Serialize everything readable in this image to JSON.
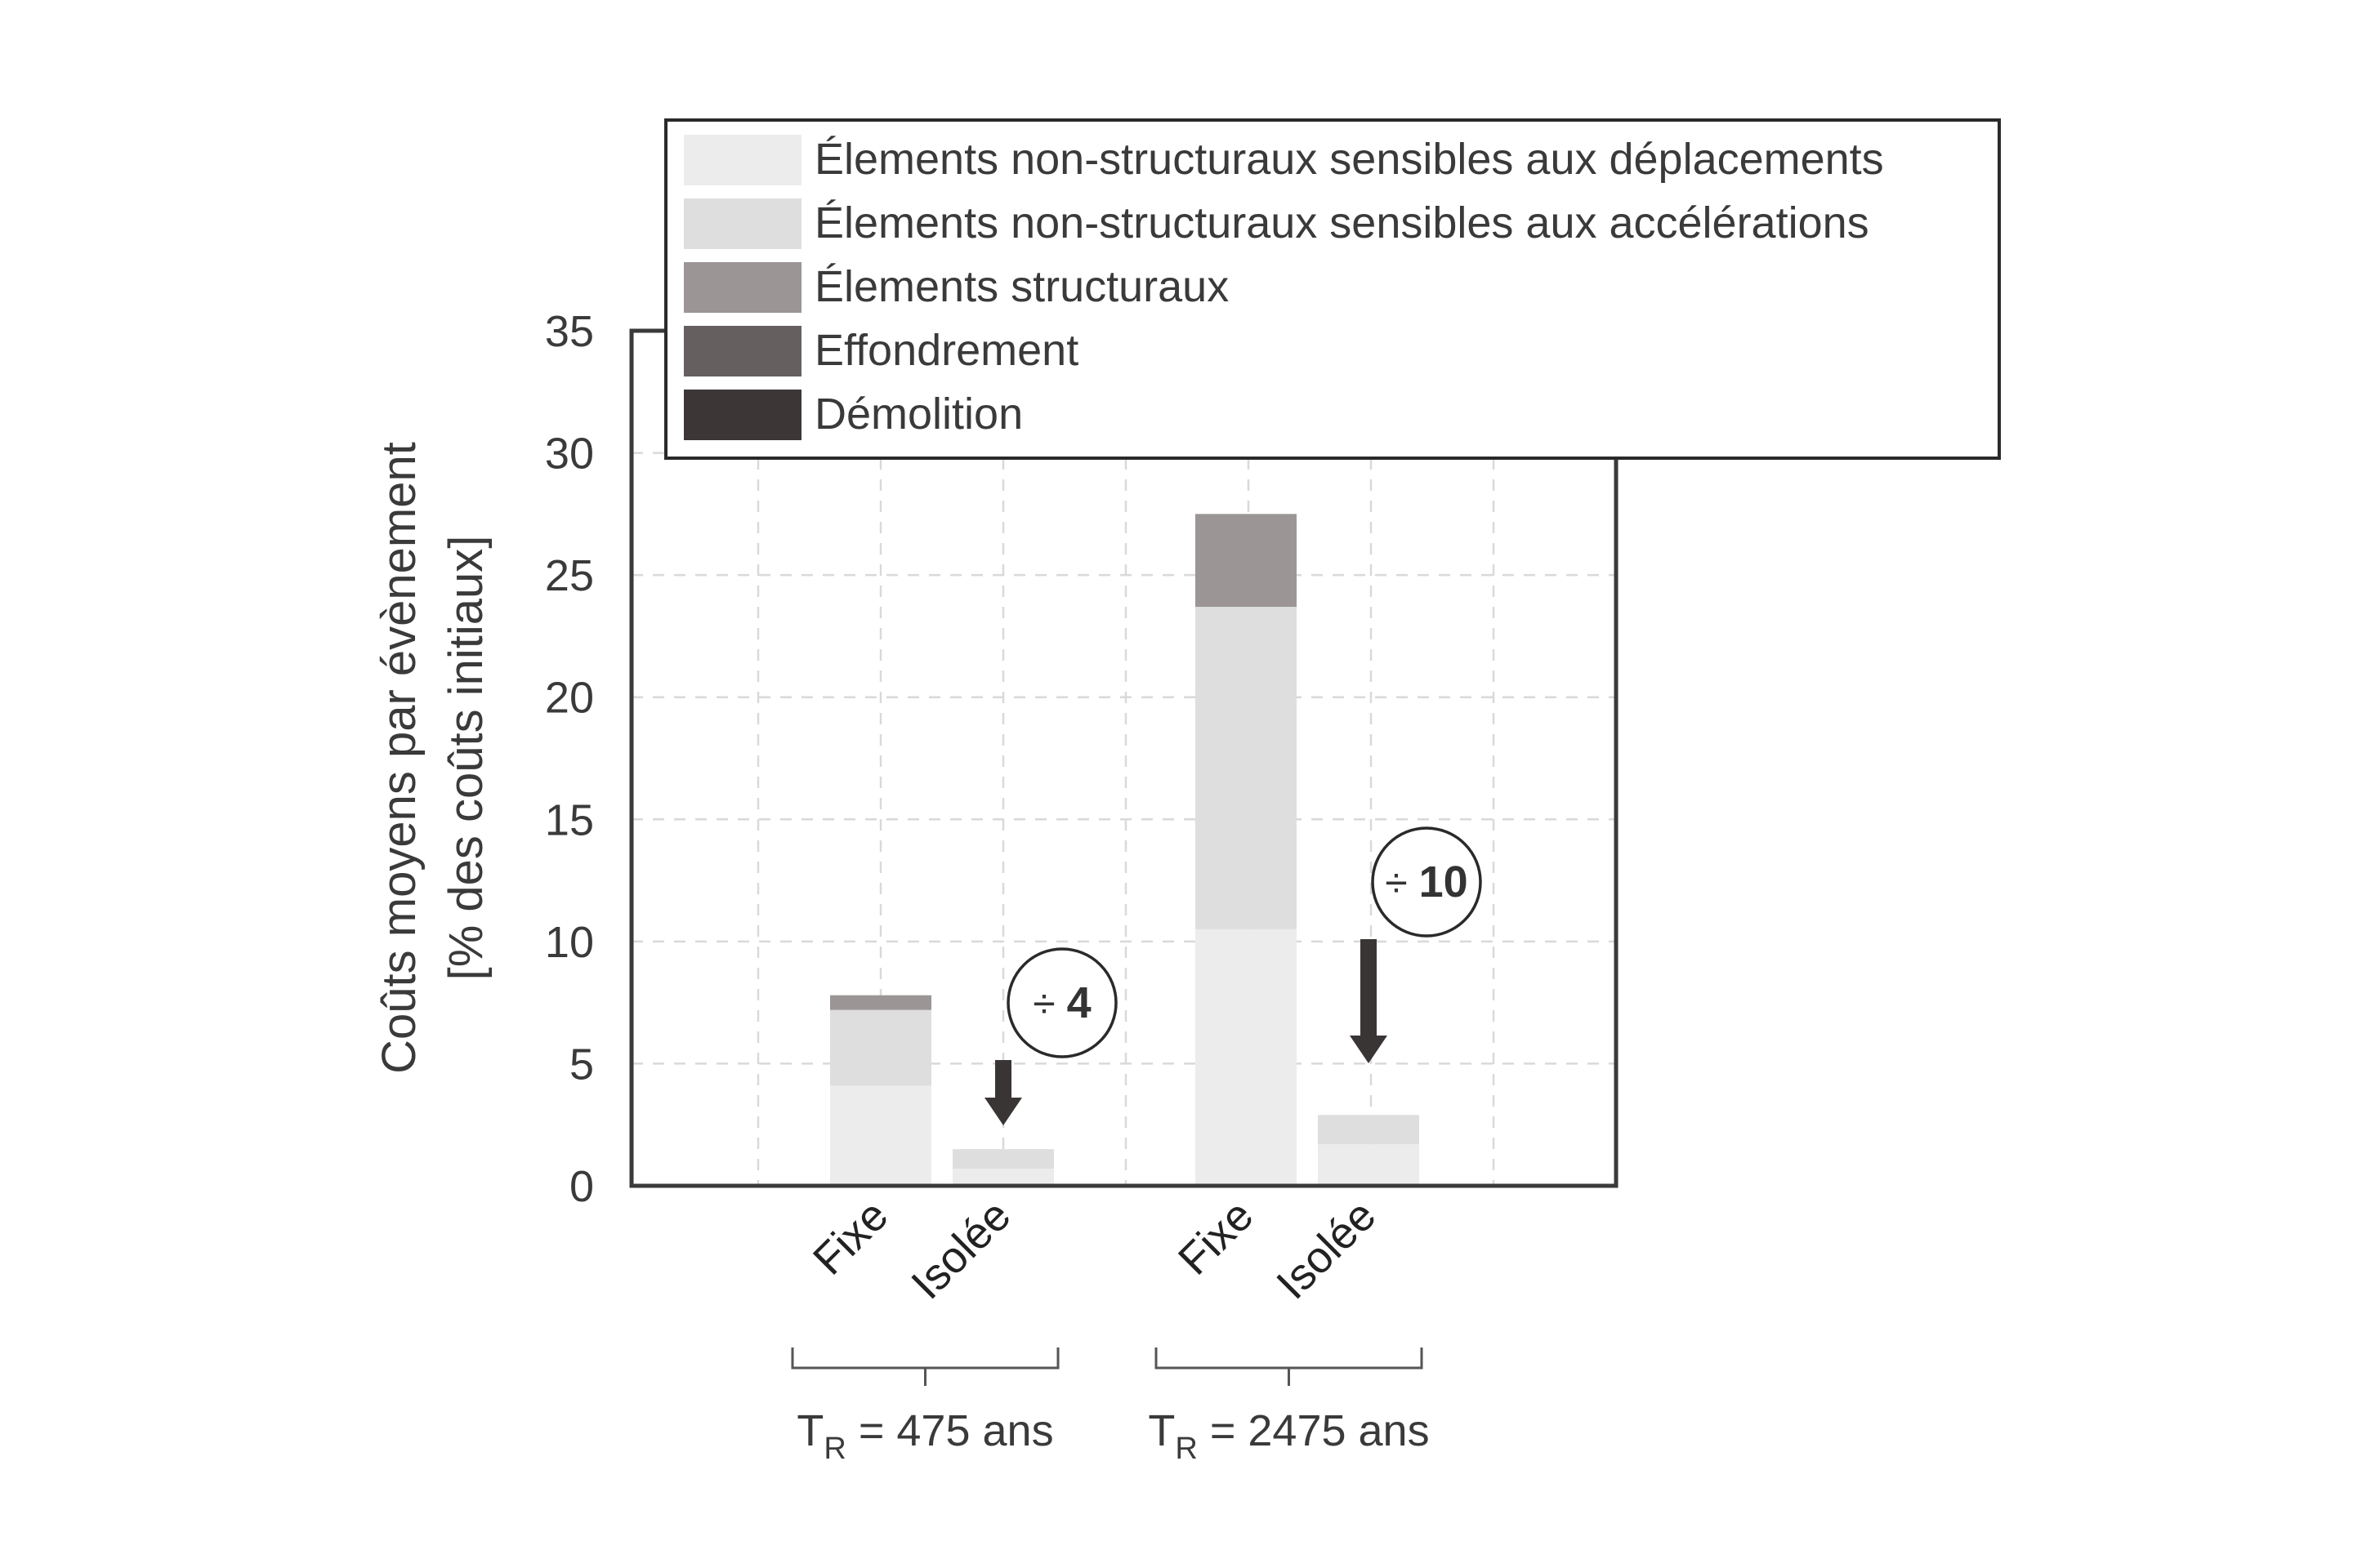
{
  "chart_data": {
    "type": "bar",
    "stacked": true,
    "ylabel_line1": "Coûts moyens par évènement",
    "ylabel_line2": "[% des coûts initiaux]",
    "ylim": [
      0,
      35
    ],
    "yticks": [
      "0",
      "5",
      "10",
      "15",
      "20",
      "25",
      "30",
      "35"
    ],
    "grid": true,
    "legend_position": "top",
    "categories": [
      "Fixe",
      "Isolée",
      "Fixe",
      "Isolée"
    ],
    "groups": [
      {
        "label_main": "T",
        "label_sub": "R",
        "label_rest": " = 475 ans"
      },
      {
        "label_main": "T",
        "label_sub": "R",
        "label_rest": " = 2475 ans"
      }
    ],
    "series": [
      {
        "name": "Élements non-structuraux sensibles aux déplacements",
        "color": "#ececec",
        "values": [
          4.1,
          0.7,
          10.5,
          1.7
        ]
      },
      {
        "name": "Élements non-structuraux sensibles aux accélérations",
        "color": "#dededf",
        "values": [
          3.1,
          0.8,
          13.2,
          1.2
        ]
      },
      {
        "name": "Élements structuraux",
        "color": "#9b9595",
        "values": [
          0.6,
          0.0,
          3.8,
          0.0
        ]
      },
      {
        "name": "Effondrement",
        "color": "#665f5f",
        "values": [
          0,
          0,
          0,
          0
        ]
      },
      {
        "name": "Démolition",
        "color": "#3d3636",
        "values": [
          0,
          0,
          0,
          0
        ]
      }
    ],
    "annotations": [
      {
        "symbol": "÷",
        "number": "4"
      },
      {
        "symbol": "÷",
        "number": "10"
      }
    ]
  }
}
